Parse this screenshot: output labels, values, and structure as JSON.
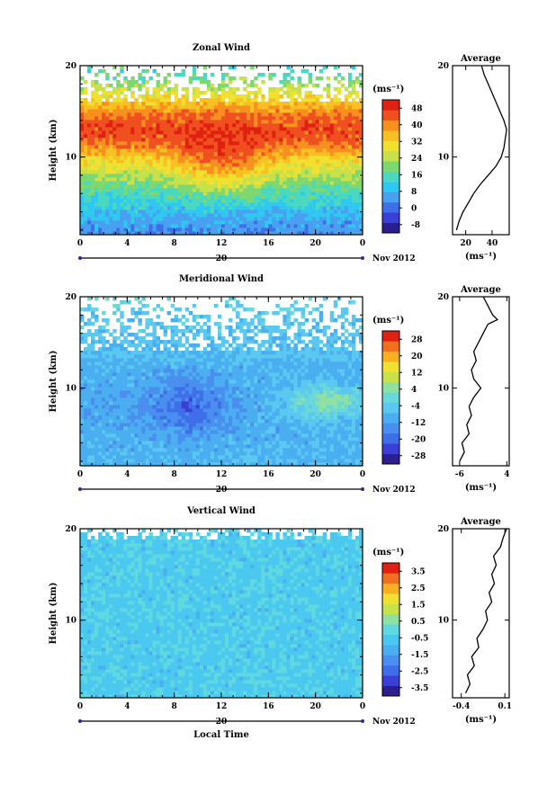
{
  "chart_data": [
    {
      "type": "heatmap",
      "title": "Zonal Wind",
      "ylabel": "Height (km)",
      "xlabel": "",
      "x_ticks": [
        "0",
        "4",
        "8",
        "12",
        "16",
        "20",
        "0"
      ],
      "y_ticks": [
        "10",
        "20"
      ],
      "xlim": [
        0,
        24
      ],
      "ylim": [
        1.5,
        20
      ],
      "date_label": "20",
      "month_label": "Nov 2012",
      "colorbar": {
        "unit_label": "(ms⁻¹)",
        "ticks": [
          48,
          40,
          32,
          24,
          16,
          8,
          0,
          -8
        ],
        "range": [
          -12,
          52
        ],
        "colors": [
          "#2b1f8f",
          "#3a3fd6",
          "#3f6fe8",
          "#4aa0f0",
          "#2fc8f0",
          "#4ad8c0",
          "#7ed870",
          "#c8e04a",
          "#f0e030",
          "#f8c020",
          "#f89020",
          "#f05020",
          "#e02010"
        ]
      },
      "profile": {
        "title": "Average",
        "xlabel": "(ms⁻¹)",
        "x_ticks": [
          "20",
          "40"
        ],
        "xlim": [
          10,
          53
        ],
        "y_ticks": [
          "10",
          "20"
        ],
        "ylim": [
          1.5,
          20
        ],
        "points": [
          [
            13,
            2
          ],
          [
            15,
            3
          ],
          [
            18,
            4
          ],
          [
            22,
            5
          ],
          [
            26,
            6
          ],
          [
            31,
            7
          ],
          [
            37,
            8
          ],
          [
            43,
            9
          ],
          [
            47,
            10
          ],
          [
            49,
            11
          ],
          [
            50,
            12
          ],
          [
            51,
            13
          ],
          [
            49,
            14
          ],
          [
            46,
            15
          ],
          [
            43,
            16
          ],
          [
            40,
            17
          ],
          [
            37,
            18
          ],
          [
            34,
            19
          ],
          [
            32,
            20
          ]
        ]
      },
      "field": {
        "profile": [
          [
            2,
            4
          ],
          [
            4,
            9
          ],
          [
            6,
            15
          ],
          [
            8,
            23
          ],
          [
            10,
            33
          ],
          [
            11,
            39
          ],
          [
            12,
            44
          ],
          [
            13,
            46
          ],
          [
            14,
            44
          ],
          [
            15,
            40
          ],
          [
            16,
            34
          ],
          [
            17,
            28
          ],
          [
            18,
            22
          ],
          [
            19,
            17
          ],
          [
            20,
            14
          ]
        ],
        "wave_amp": 12,
        "wave_center": 12,
        "wave_width": 4,
        "wave_height": 9,
        "noise_height": 16
      }
    },
    {
      "type": "heatmap",
      "title": "Meridional Wind",
      "ylabel": "Height (km)",
      "xlabel": "",
      "x_ticks": [
        "0",
        "4",
        "8",
        "12",
        "16",
        "20",
        "0"
      ],
      "y_ticks": [
        "10",
        "20"
      ],
      "xlim": [
        0,
        24
      ],
      "ylim": [
        1.5,
        20
      ],
      "date_label": "20",
      "month_label": "Nov 2012",
      "colorbar": {
        "unit_label": "(ms⁻¹)",
        "ticks": [
          28,
          20,
          12,
          4,
          -4,
          -12,
          -20,
          -28
        ],
        "range": [
          -32,
          32
        ],
        "colors": [
          "#2b1f8f",
          "#3a3fd6",
          "#3f6fe8",
          "#4a8ef0",
          "#4aaef0",
          "#5ac8f0",
          "#6ad8d8",
          "#90e0a0",
          "#c8e04a",
          "#f0e030",
          "#f8b020",
          "#f07020",
          "#e02010"
        ]
      },
      "profile": {
        "title": "Average",
        "xlabel": "(ms⁻¹)",
        "x_ticks": [
          "-6",
          "4"
        ],
        "xlim": [
          -7.5,
          4.5
        ],
        "y_ticks": [
          "10",
          "20"
        ],
        "ylim": [
          1.5,
          20
        ],
        "points": [
          [
            -6,
            2
          ],
          [
            -5,
            3
          ],
          [
            -5.5,
            4
          ],
          [
            -4,
            5
          ],
          [
            -4.5,
            6
          ],
          [
            -3.5,
            7
          ],
          [
            -4,
            8
          ],
          [
            -3,
            9
          ],
          [
            -1.5,
            10
          ],
          [
            -3,
            11
          ],
          [
            -3.5,
            12
          ],
          [
            -2.5,
            13
          ],
          [
            -3,
            14
          ],
          [
            -2,
            15
          ],
          [
            -1,
            16
          ],
          [
            0,
            17
          ],
          [
            2,
            17.5
          ],
          [
            1,
            18
          ],
          [
            0,
            19
          ],
          [
            -1,
            20
          ]
        ]
      },
      "field": {
        "profile": [
          [
            2,
            -8
          ],
          [
            4,
            -9
          ],
          [
            6,
            -10
          ],
          [
            8,
            -11
          ],
          [
            10,
            -10
          ],
          [
            12,
            -9
          ],
          [
            14,
            -7
          ],
          [
            16,
            -6
          ],
          [
            18,
            -5
          ],
          [
            20,
            -3
          ]
        ],
        "wave_amp": -10,
        "wave_center": 9,
        "wave_width": 3,
        "wave_height": 8,
        "noise_height": 14,
        "blob": {
          "x": 21,
          "y": 8.5,
          "rx": 4,
          "ry": 2,
          "amp": 14
        }
      }
    },
    {
      "type": "heatmap",
      "title": "Vertical Wind",
      "ylabel": "Height (km)",
      "xlabel": "Local Time",
      "x_ticks": [
        "0",
        "4",
        "8",
        "12",
        "16",
        "20",
        "0"
      ],
      "y_ticks": [
        "10",
        "20"
      ],
      "xlim": [
        0,
        24
      ],
      "ylim": [
        1.5,
        20
      ],
      "date_label": "20",
      "month_label": "Nov 2012",
      "colorbar": {
        "unit_label": "(ms⁻¹)",
        "ticks": [
          3.5,
          2.5,
          1.5,
          0.5,
          -0.5,
          -1.5,
          -2.5,
          -3.5
        ],
        "range": [
          -4,
          4
        ],
        "colors": [
          "#2b1f8f",
          "#3a3fd6",
          "#3f6fe8",
          "#4a8ef0",
          "#4aaef0",
          "#4ac8f0",
          "#60d8e0",
          "#90e0a0",
          "#c8e04a",
          "#f0e030",
          "#f8b020",
          "#f07020",
          "#e02010"
        ]
      },
      "profile": {
        "title": "Average",
        "xlabel": "(ms⁻¹)",
        "x_ticks": [
          "-0.4",
          "0.1"
        ],
        "xlim": [
          -0.5,
          0.15
        ],
        "y_ticks": [
          "10",
          "20"
        ],
        "ylim": [
          1.5,
          20
        ],
        "points": [
          [
            -0.35,
            2
          ],
          [
            -0.3,
            3
          ],
          [
            -0.33,
            4
          ],
          [
            -0.25,
            5
          ],
          [
            -0.28,
            6
          ],
          [
            -0.2,
            7
          ],
          [
            -0.22,
            8
          ],
          [
            -0.15,
            9
          ],
          [
            -0.1,
            10
          ],
          [
            -0.12,
            11
          ],
          [
            -0.05,
            12
          ],
          [
            -0.08,
            13
          ],
          [
            -0.02,
            14
          ],
          [
            -0.05,
            15
          ],
          [
            0.0,
            16
          ],
          [
            -0.03,
            17
          ],
          [
            0.05,
            18
          ],
          [
            0.08,
            19
          ],
          [
            0.12,
            20
          ]
        ]
      },
      "field": {
        "profile": [
          [
            2,
            -0.5
          ],
          [
            20,
            -0.5
          ]
        ],
        "wave_amp": 0,
        "wave_center": 12,
        "wave_width": 4,
        "wave_height": 10,
        "noise_height": 19
      }
    }
  ]
}
